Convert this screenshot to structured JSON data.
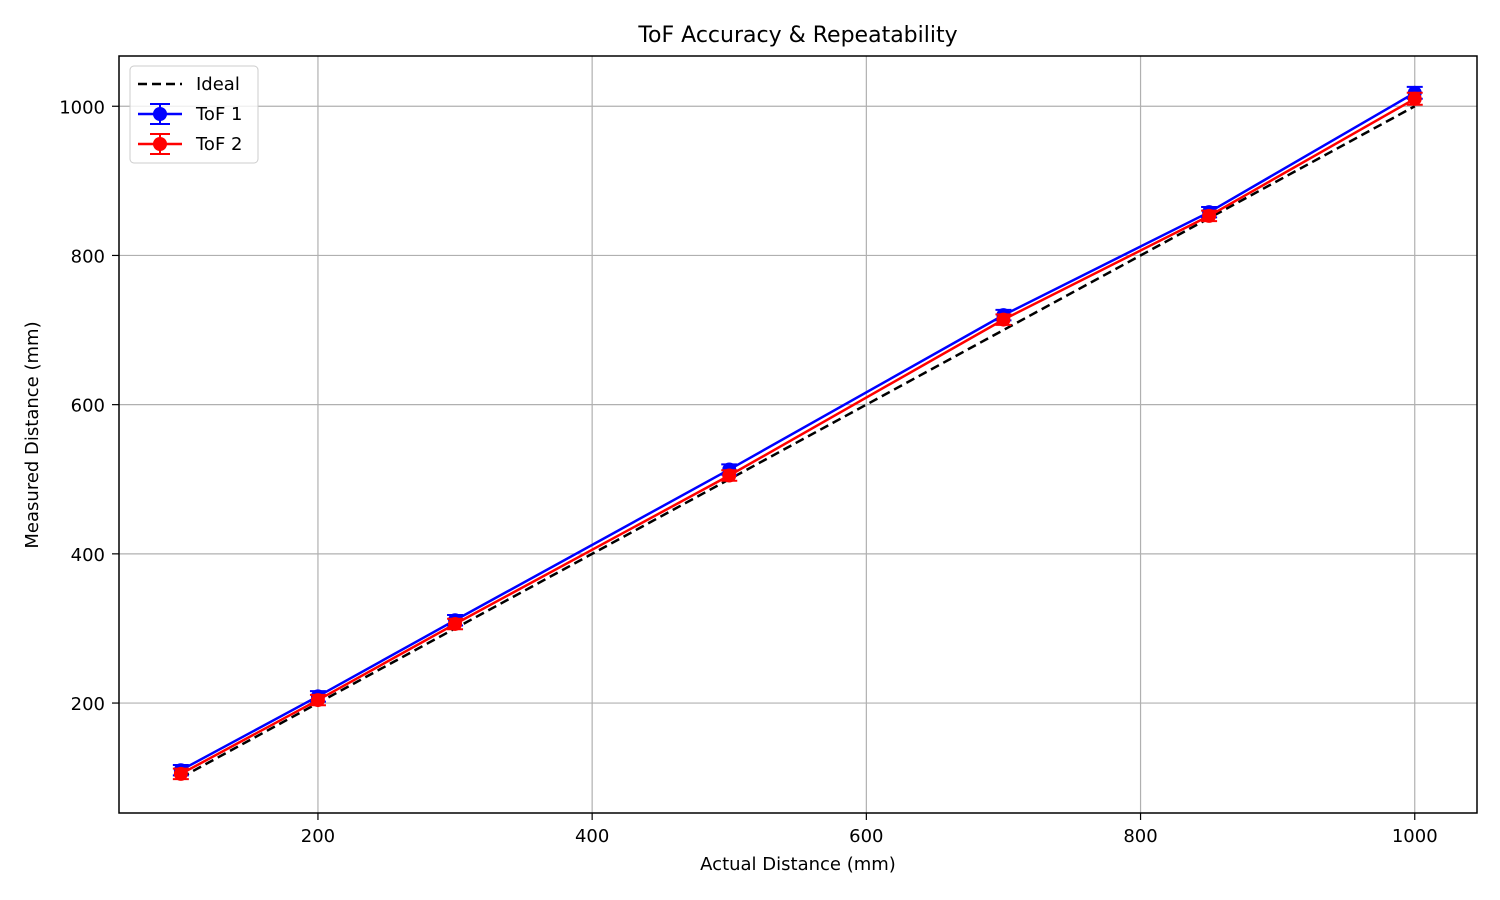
{
  "chart_data": {
    "type": "line",
    "title": "ToF Accuracy & Repeatability",
    "xlabel": "Actual Distance (mm)",
    "ylabel": "Measured Distance (mm)",
    "x": [
      100,
      200,
      300,
      500,
      700,
      850,
      1000
    ],
    "series": [
      {
        "name": "Ideal",
        "values": [
          100,
          200,
          300,
          500,
          700,
          850,
          1000
        ],
        "color": "#000000",
        "style": "dashed",
        "marker": "none"
      },
      {
        "name": "ToF 1",
        "values": [
          110,
          209,
          311,
          513,
          720,
          858,
          1018
        ],
        "error": [
          3,
          3,
          3,
          3,
          3,
          3,
          4
        ],
        "color": "#0000ff",
        "style": "solid",
        "marker": "circle"
      },
      {
        "name": "ToF 2",
        "values": [
          105,
          204,
          306,
          505,
          714,
          853,
          1010
        ],
        "error": [
          3,
          3,
          3,
          3,
          3,
          3,
          4
        ],
        "color": "#ff0000",
        "style": "solid",
        "marker": "circle"
      }
    ],
    "xticks": [
      200,
      400,
      600,
      800,
      1000
    ],
    "yticks": [
      200,
      400,
      600,
      800,
      1000
    ],
    "xlim": [
      55,
      1045
    ],
    "ylim": [
      35,
      1066
    ],
    "grid": true,
    "legend_position": "upper left"
  }
}
